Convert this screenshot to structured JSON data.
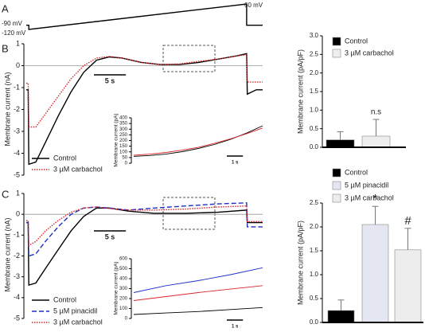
{
  "chart_data": [
    {
      "type": "line",
      "panel": "A",
      "annotations": [
        "-90 mV",
        "-120 mV",
        "60 mV"
      ],
      "series": [
        {
          "color": "#000000",
          "dash": "solid",
          "x": [
            0,
            0.4,
            0.4,
            34.5,
            34.5,
            37
          ],
          "values": [
            -90,
            -90,
            -120,
            60,
            -90,
            -90
          ]
        }
      ]
    },
    {
      "type": "line",
      "panel": "B",
      "ylabel": "Membrane current (nA)",
      "xlim": [
        0,
        37
      ],
      "ylim": [
        -5,
        1
      ],
      "yticks": [
        1,
        0,
        -1,
        -2,
        -3,
        -4,
        -5
      ],
      "zero_line": true,
      "scalebar": {
        "value": 5,
        "label": "5 s"
      },
      "series": [
        {
          "name": "Control",
          "color": "#000000",
          "dash": "solid",
          "x": [
            0,
            0.3,
            0.4,
            1.5,
            3,
            5,
            7,
            9,
            11,
            13,
            15,
            18,
            21,
            24,
            27,
            30,
            33,
            34.5,
            34.6,
            36,
            37
          ],
          "values": [
            -1.1,
            -1.1,
            -4.5,
            -4.4,
            -3.5,
            -2.3,
            -1.2,
            -0.3,
            0.25,
            0.4,
            0.35,
            0.15,
            0.05,
            0.05,
            0.15,
            0.3,
            0.45,
            0.55,
            -1.3,
            -1.1,
            -1.1
          ]
        },
        {
          "name": "3 µM carbachol",
          "color": "#d9262b",
          "dash": "dotted",
          "x": [
            0,
            0.3,
            0.4,
            1.5,
            3,
            5,
            7,
            9,
            11,
            13,
            15,
            18,
            21,
            24,
            27,
            30,
            33,
            34.5,
            34.6,
            37
          ],
          "values": [
            -0.8,
            -0.8,
            -2.8,
            -2.8,
            -2.2,
            -1.4,
            -0.6,
            0,
            0.35,
            0.42,
            0.35,
            0.15,
            0.05,
            0.08,
            0.2,
            0.3,
            0.45,
            0.5,
            -0.75,
            -0.75
          ]
        }
      ]
    },
    {
      "type": "line",
      "ylabel": "Membrane current (pA)",
      "xlim": [
        0,
        8
      ],
      "ylim": [
        0,
        400
      ],
      "yticks": [
        0,
        50,
        100,
        150,
        200,
        250,
        300,
        350,
        400
      ],
      "scalebar": {
        "value": 1,
        "label": "1 s"
      },
      "series": [
        {
          "color": "#000000",
          "dash": "solid",
          "x": [
            0,
            1,
            2,
            3,
            4,
            5,
            6,
            7,
            8
          ],
          "values": [
            60,
            68,
            80,
            102,
            130,
            165,
            210,
            265,
            330
          ]
        },
        {
          "color": "#d9262b",
          "dash": "solid",
          "x": [
            0,
            1,
            2,
            3,
            4,
            5,
            6,
            7,
            8
          ],
          "values": [
            70,
            80,
            95,
            115,
            140,
            175,
            215,
            260,
            310
          ]
        }
      ]
    },
    {
      "type": "bar",
      "ylabel": "Membrane current (pA/pF)",
      "ylim": [
        0,
        3
      ],
      "yticks": [
        {
          "value": 0,
          "label": "0.0"
        },
        0.5,
        {
          "value": 1,
          "label": "1.0"
        },
        1.5,
        {
          "value": 2,
          "label": "2.0"
        },
        2.5,
        {
          "value": 3,
          "label": "3.0"
        }
      ],
      "series": [
        {
          "name": "Control",
          "color": "#000000",
          "values": [
            0.2
          ],
          "errors": [
            0.22
          ]
        },
        {
          "name": "3 µM carbachol",
          "color": "#eeeeee",
          "values": [
            0.3
          ],
          "errors": [
            0.45
          ],
          "annotation": "n.s"
        }
      ]
    },
    {
      "type": "line",
      "panel": "C",
      "ylabel": "Membrane current (nA)",
      "xlim": [
        0,
        37
      ],
      "ylim": [
        -5,
        1
      ],
      "yticks": [
        1,
        0,
        -1,
        -2,
        -3,
        -4,
        -5
      ],
      "zero_line": true,
      "scalebar": {
        "value": 5,
        "label": "5 s"
      },
      "series": [
        {
          "name": "Control",
          "color": "#000000",
          "dash": "solid",
          "x": [
            0,
            0.3,
            0.4,
            1.5,
            3,
            5,
            7,
            9,
            11,
            13,
            16,
            20,
            25,
            30,
            34.5,
            34.6,
            37
          ],
          "values": [
            -0.4,
            -0.4,
            -3.4,
            -3.3,
            -2.6,
            -1.7,
            -0.8,
            -0.1,
            0.3,
            0.3,
            0.15,
            0.05,
            0.05,
            0.1,
            0.2,
            -0.4,
            -0.4
          ]
        },
        {
          "name": "5 µM pinacidil",
          "color": "#1f2fc8",
          "dash": "dashed",
          "x": [
            0,
            0.3,
            0.4,
            1.5,
            3,
            5,
            7,
            9,
            11,
            13,
            16,
            20,
            25,
            30,
            34.5,
            34.6,
            37
          ],
          "values": [
            -0.4,
            -0.4,
            -2.0,
            -1.9,
            -1.3,
            -0.6,
            0,
            0.3,
            0.35,
            0.3,
            0.2,
            0.3,
            0.4,
            0.5,
            0.55,
            -0.6,
            -0.6
          ]
        },
        {
          "name": "3 µM carbachol",
          "color": "#d9262b",
          "dash": "dotted",
          "x": [
            0,
            0.3,
            0.4,
            1.5,
            3,
            5,
            7,
            9,
            11,
            13,
            16,
            20,
            25,
            30,
            34.5,
            34.6,
            37
          ],
          "values": [
            -0.3,
            -0.3,
            -1.5,
            -1.3,
            -0.8,
            -0.3,
            0.1,
            0.3,
            0.35,
            0.28,
            0.2,
            0.2,
            0.25,
            0.35,
            0.4,
            -0.35,
            -0.35
          ]
        }
      ]
    },
    {
      "type": "line",
      "ylabel": "Membrane current (pA)",
      "xlim": [
        0,
        8
      ],
      "ylim": [
        0,
        600
      ],
      "yticks": [
        0,
        100,
        200,
        300,
        400,
        500,
        600
      ],
      "scalebar": {
        "value": 1,
        "label": "1 s"
      },
      "series": [
        {
          "color": "#000000",
          "dash": "solid",
          "x": [
            0,
            2,
            4,
            6,
            8
          ],
          "values": [
            40,
            55,
            70,
            90,
            110
          ]
        },
        {
          "color": "#1f2fc8",
          "dash": "solid",
          "x": [
            0,
            2,
            4,
            6,
            8
          ],
          "values": [
            260,
            330,
            380,
            440,
            510
          ]
        },
        {
          "color": "#d9262b",
          "dash": "solid",
          "x": [
            0,
            2,
            4,
            6,
            8
          ],
          "values": [
            180,
            220,
            260,
            295,
            330
          ]
        }
      ]
    },
    {
      "type": "bar",
      "ylabel": "Membrane current (pA/pF)",
      "ylim": [
        0,
        2.5
      ],
      "yticks": [
        {
          "value": 0,
          "label": "0.0"
        },
        0.5,
        {
          "value": 1,
          "label": "1.0"
        },
        1.5,
        {
          "value": 2,
          "label": "2.0"
        },
        2.5
      ],
      "series": [
        {
          "name": "Control",
          "color": "#000000",
          "values": [
            0.25
          ],
          "errors": [
            0.22
          ]
        },
        {
          "name": "5 µM pinacidil",
          "color": "#e4e6f2",
          "values": [
            2.05
          ],
          "errors": [
            0.38
          ],
          "annotation": "*"
        },
        {
          "name": "3 µM carbachol",
          "color": "#ededed",
          "values": [
            1.52
          ],
          "errors": [
            0.45
          ],
          "annotation": "#"
        }
      ]
    }
  ]
}
